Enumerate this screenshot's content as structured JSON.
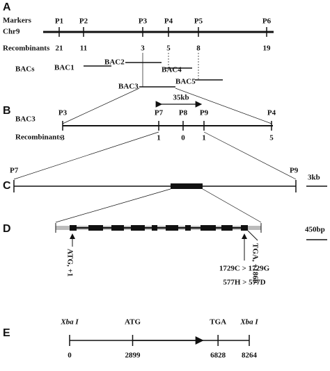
{
  "panel_a": {
    "label": "A",
    "row_markers": "Markers",
    "row_chr": "Chr9",
    "row_recombinants": "Recombinants",
    "row_bacs": "BACs",
    "markers": [
      {
        "name": "P1",
        "recombinants": 21
      },
      {
        "name": "P2",
        "recombinants": 11
      },
      {
        "name": "P3",
        "recombinants": 3
      },
      {
        "name": "P4",
        "recombinants": 5
      },
      {
        "name": "P5",
        "recombinants": 8
      },
      {
        "name": "P6",
        "recombinants": 19
      }
    ],
    "bacs": [
      "BAC1",
      "BAC2",
      "BAC4",
      "BAC5",
      "BAC3"
    ]
  },
  "panel_b": {
    "label": "B",
    "row_bac": "BAC3",
    "row_recombinants": "Recombinants",
    "distance": "35kb",
    "markers": [
      {
        "name": "P3",
        "recombinants": 3
      },
      {
        "name": "P7",
        "recombinants": 1
      },
      {
        "name": "P8",
        "recombinants": 0
      },
      {
        "name": "P9",
        "recombinants": 1
      },
      {
        "name": "P4",
        "recombinants": 5
      }
    ]
  },
  "panel_c": {
    "label": "C",
    "left": "P7",
    "right": "P9",
    "scale": "3kb"
  },
  "panel_d": {
    "label": "D",
    "scale": "450bp",
    "start": "ATG, +1",
    "stop": "TGA, +1860",
    "mutation_nt": "1729C > 1729G",
    "mutation_aa": "577H > 577D"
  },
  "panel_e": {
    "label": "E",
    "sites": [
      {
        "name": "Xba I",
        "position": 0
      },
      {
        "name": "ATG",
        "position": 2899
      },
      {
        "name": "TGA",
        "position": 6828
      },
      {
        "name": "Xba I",
        "position": 8264
      }
    ]
  }
}
